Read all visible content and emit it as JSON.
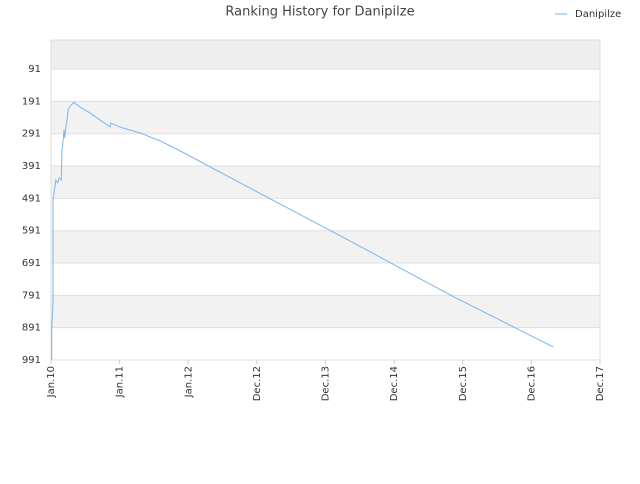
{
  "chart_data": {
    "type": "line",
    "title": "Ranking History for Danipilze",
    "series": [
      {
        "name": "Danipilze",
        "color": "#7cb5ec",
        "x": [
          0.01,
          0.01,
          0.03,
          0.03,
          0.04,
          0.06,
          0.07,
          0.1,
          0.12,
          0.15,
          0.16,
          0.17,
          0.19,
          0.2,
          0.22,
          0.23,
          0.25,
          0.28,
          0.31,
          0.34,
          0.36,
          0.42,
          0.57,
          0.71,
          0.86,
          0.87,
          1.0,
          1.3,
          1.59,
          1.88,
          2.9,
          4.36,
          5.82,
          7.32
        ],
        "values": [
          991,
          898,
          805,
          496,
          480,
          450,
          434,
          443,
          428,
          434,
          341,
          325,
          279,
          304,
          264,
          255,
          218,
          205,
          199,
          193,
          199,
          208,
          227,
          248,
          270,
          258,
          270,
          289,
          313,
          344,
          459,
          623,
          790,
          951
        ]
      }
    ],
    "xlim": [
      0,
      8
    ],
    "xticks": [
      {
        "value": 0,
        "label": "Jan.10"
      },
      {
        "value": 1,
        "label": "Jan.11"
      },
      {
        "value": 2,
        "label": "Jan.12"
      },
      {
        "value": 3,
        "label": "Dec.12"
      },
      {
        "value": 4,
        "label": "Dec.13"
      },
      {
        "value": 5,
        "label": "Dec.14"
      },
      {
        "value": 6,
        "label": "Dec.15"
      },
      {
        "value": 7,
        "label": "Dec.16"
      },
      {
        "value": 8,
        "label": "Dec.17"
      }
    ],
    "ylim": [
      1,
      991
    ],
    "y_inverted": true,
    "yticks": [
      91,
      191,
      291,
      391,
      491,
      591,
      691,
      791,
      891,
      991
    ],
    "bands": true,
    "legend": "top-right"
  }
}
